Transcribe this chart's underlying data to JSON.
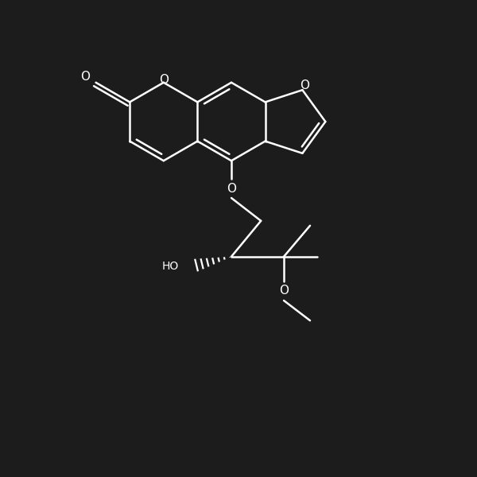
{
  "bg": "#1c1c1c",
  "lc": "#ffffff",
  "lw": 1.8,
  "figsize": [
    6.0,
    6.0
  ],
  "dpi": 100,
  "xlim": [
    0,
    10
  ],
  "ylim": [
    0,
    10
  ]
}
